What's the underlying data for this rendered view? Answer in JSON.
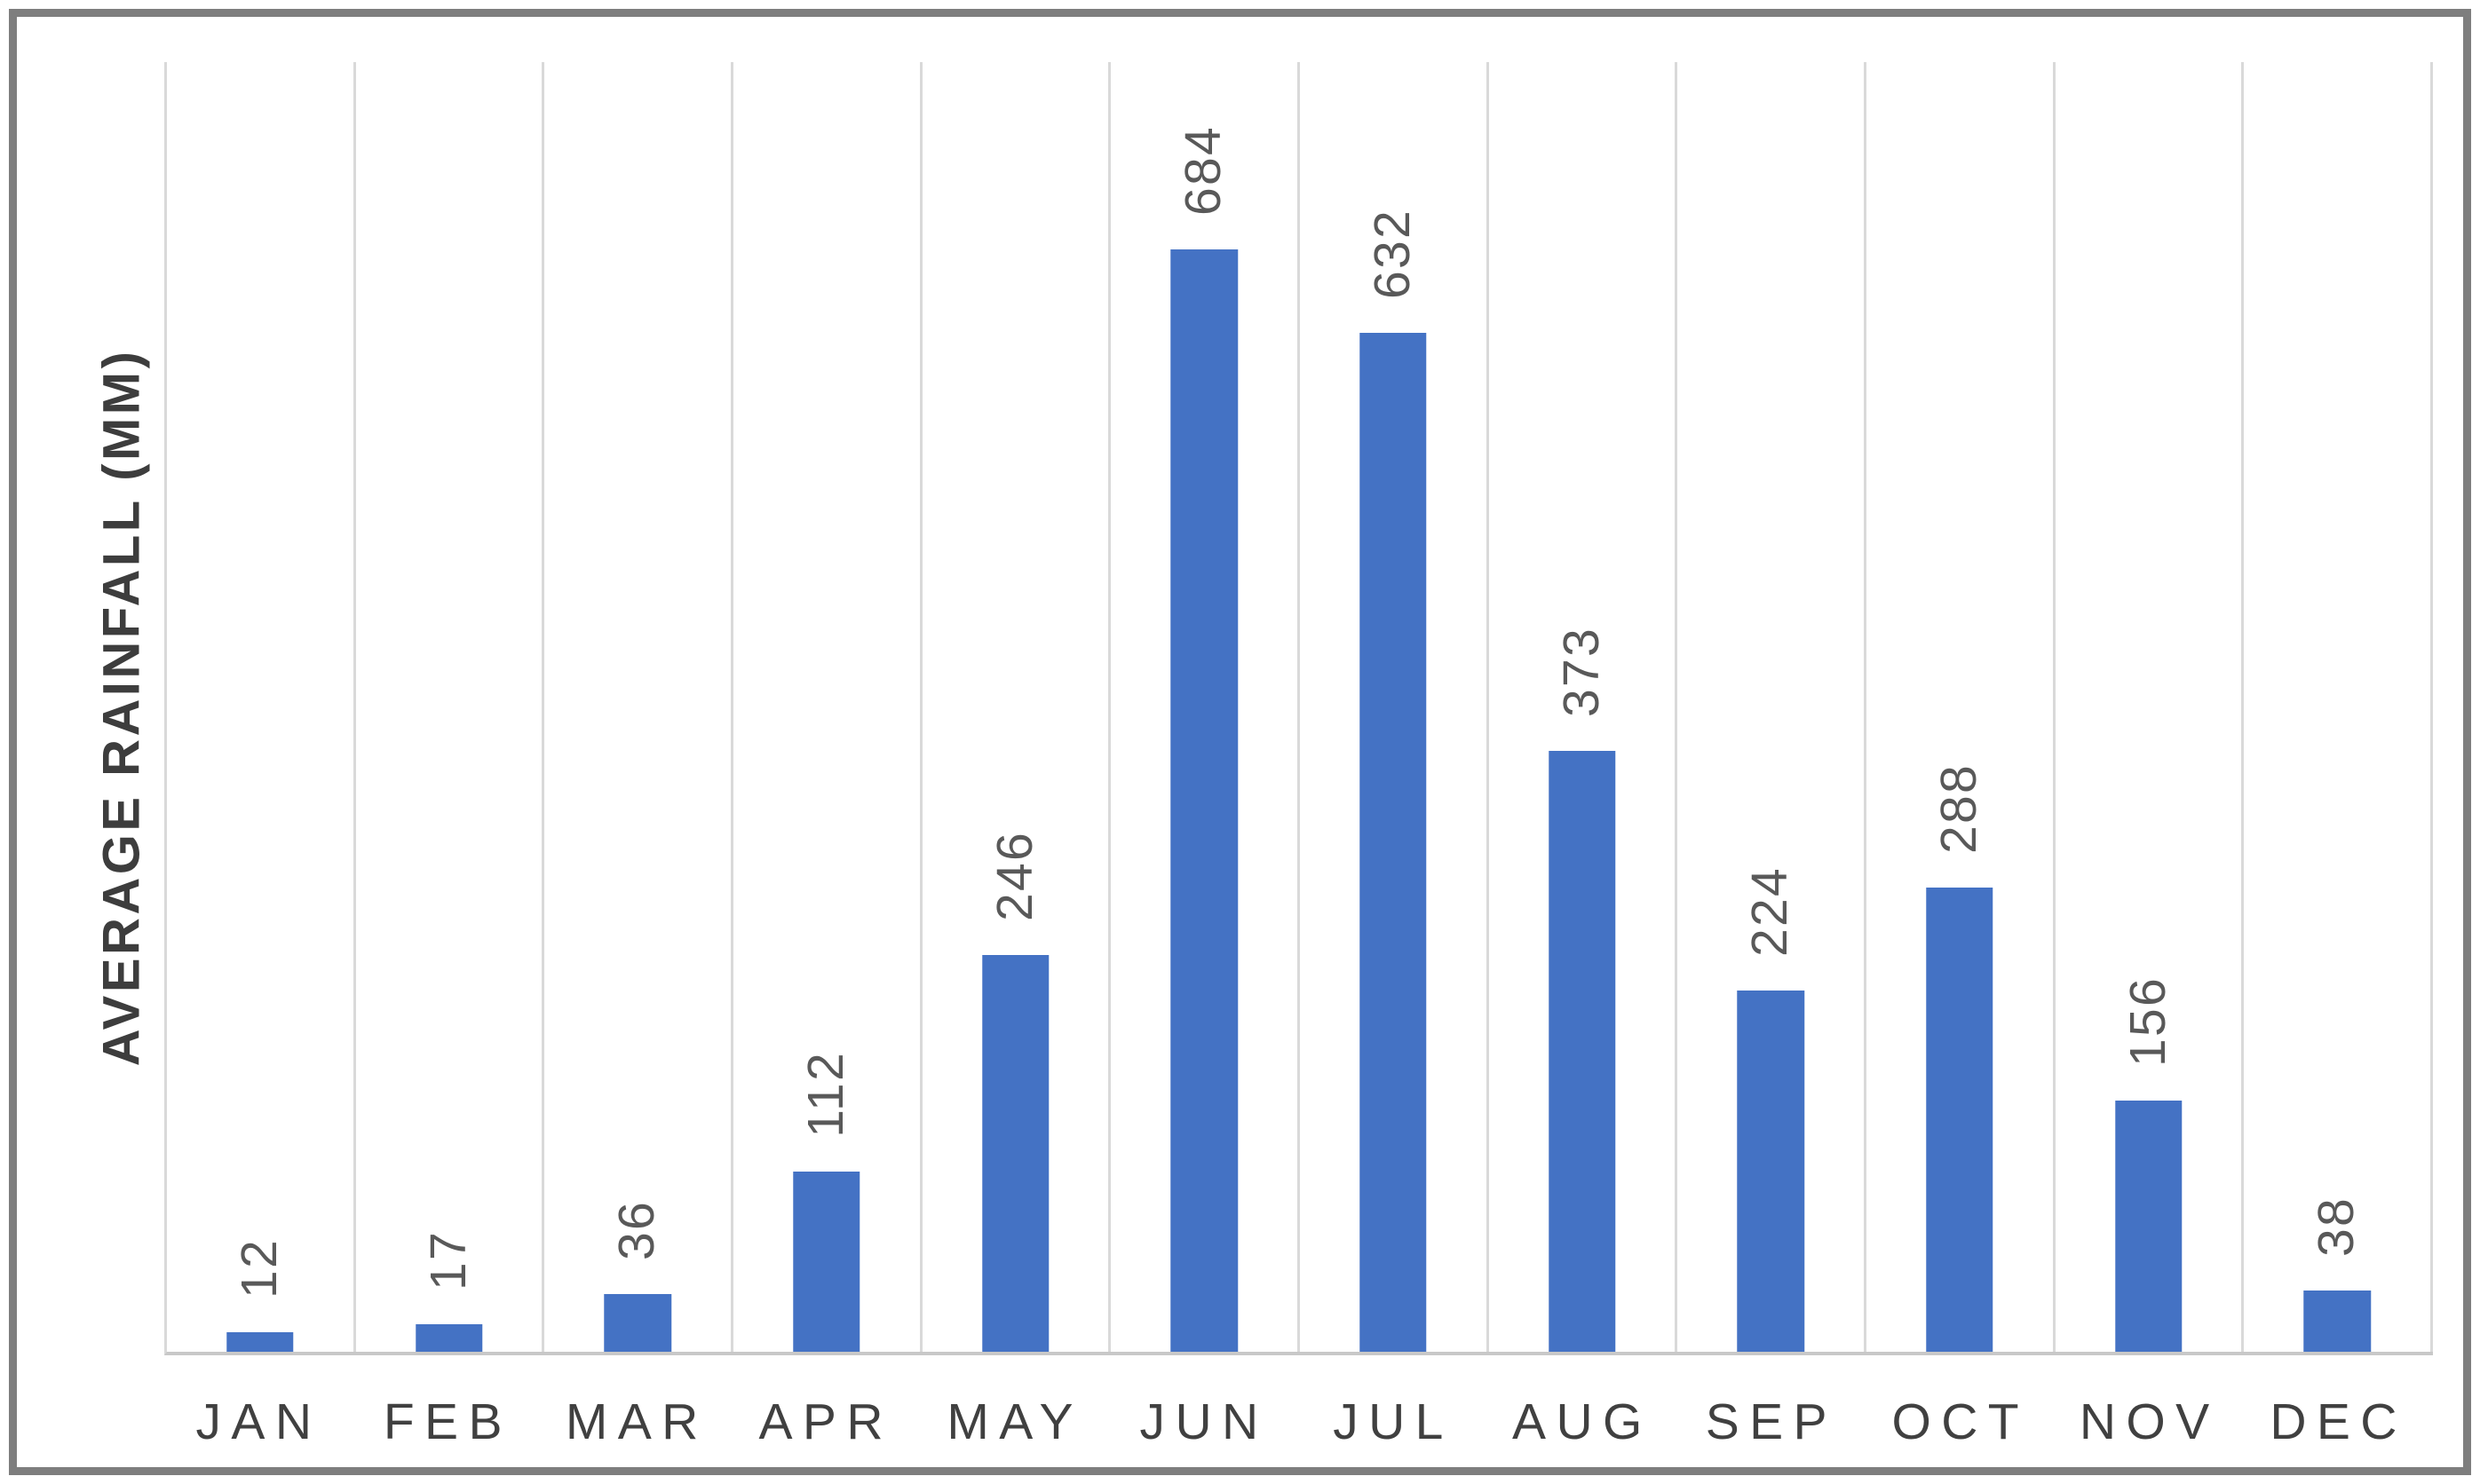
{
  "chart_data": {
    "type": "bar",
    "title": "",
    "categories": [
      "JAN",
      "FEB",
      "MAR",
      "APR",
      "MAY",
      "JUN",
      "JUL",
      "AUG",
      "SEP",
      "OCT",
      "NOV",
      "DEC"
    ],
    "values": [
      12,
      17,
      36,
      112,
      246,
      684,
      632,
      373,
      224,
      288,
      156,
      38
    ],
    "xlabel": "",
    "ylabel": "AVERAGE RAINFALL (MM)",
    "ylim": [
      0,
      800
    ],
    "grid": "vertical-category-separators-only",
    "legend_position": "none",
    "data_labels": "rotated-90deg-above-bars",
    "colors": {
      "bar": "#4472C4",
      "data_label": "#595959",
      "category_label": "#404040",
      "axis_title": "#3D3D3D",
      "gridline": "#D9D9D9",
      "axis_line": "#C8C8C8",
      "frame_border": "#7E7E7E",
      "background": "#FFFFFF"
    }
  }
}
